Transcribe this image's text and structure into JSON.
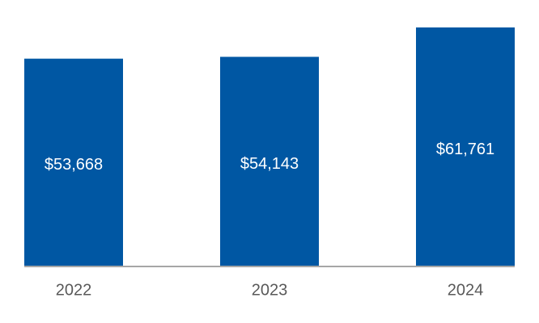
{
  "chart_data": {
    "type": "bar",
    "categories": [
      "2022",
      "2023",
      "2024"
    ],
    "values": [
      53668,
      54143,
      61761
    ],
    "value_labels": [
      "$53,668",
      "$54,143",
      "$61,761"
    ],
    "color": "#0057a3"
  }
}
